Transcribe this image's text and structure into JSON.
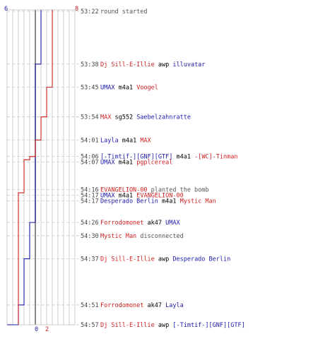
{
  "colors": {
    "t_blue": "#1a1aa8",
    "t_red": "#cc1f1f",
    "text": "#000000",
    "info": "#555555",
    "grid": "#bdbdbd",
    "dashed": "#c8c8c8",
    "center_axis": "#6a6a6a"
  },
  "counters": {
    "top_left": "6",
    "top_right": "8",
    "bottom_left": "0",
    "bottom_right": "2"
  },
  "chart_data": {
    "type": "line",
    "x_label": "",
    "series": [
      {
        "name": "blue-team",
        "color": "#1a1aa8",
        "points": [
          {
            "t": "53:22",
            "v": 6
          },
          {
            "t": "53:38",
            "v": 5
          },
          {
            "t": "54:26",
            "v": 4
          },
          {
            "t": "54:37",
            "v": 3
          },
          {
            "t": "54:51",
            "v": 2
          },
          {
            "t": "54:57",
            "v": 1
          },
          {
            "t": "end",
            "v": 0
          }
        ]
      },
      {
        "name": "red-team",
        "color": "#cc1f1f",
        "points": [
          {
            "t": "53:22",
            "v": 8
          },
          {
            "t": "53:45",
            "v": 7
          },
          {
            "t": "53:54",
            "v": 6
          },
          {
            "t": "54:01",
            "v": 5
          },
          {
            "t": "54:06",
            "v": 4
          },
          {
            "t": "54:07",
            "v": 3
          },
          {
            "t": "54:17",
            "v": 2
          },
          {
            "t": "end",
            "v": 2
          }
        ]
      }
    ]
  },
  "events": [
    {
      "time": "53:22",
      "parts": [
        {
          "text": "round started",
          "c": "info"
        }
      ]
    },
    {
      "time": "53:38",
      "parts": [
        {
          "text": "Dj Sill-E-Illie",
          "c": "red"
        },
        {
          "text": " awp ",
          "c": "text"
        },
        {
          "text": "illuvatar",
          "c": "blue"
        }
      ]
    },
    {
      "time": "53:45",
      "parts": [
        {
          "text": "UMAX",
          "c": "blue"
        },
        {
          "text": " m4a1 ",
          "c": "text"
        },
        {
          "text": "Voogel",
          "c": "red"
        }
      ]
    },
    {
      "time": "53:54",
      "parts": [
        {
          "text": "MAX",
          "c": "red"
        },
        {
          "text": " sg552 ",
          "c": "text"
        },
        {
          "text": "Saebelzahnratte",
          "c": "blue"
        }
      ]
    },
    {
      "time": "54:01",
      "parts": [
        {
          "text": "Layla",
          "c": "blue"
        },
        {
          "text": " m4a1 ",
          "c": "text"
        },
        {
          "text": "MAX",
          "c": "red"
        }
      ]
    },
    {
      "time": "54:06",
      "parts": [
        {
          "text": "[-Timtif-][GNF][GTF]",
          "c": "blue"
        },
        {
          "text": " m4a1 ",
          "c": "text"
        },
        {
          "text": "-[WC]-Tinman",
          "c": "red"
        }
      ]
    },
    {
      "time": "54:07",
      "parts": [
        {
          "text": "UMAX",
          "c": "blue"
        },
        {
          "text": " m4a1 ",
          "c": "text"
        },
        {
          "text": "pgplcereal",
          "c": "red"
        }
      ]
    },
    {
      "time": "54:16",
      "parts": [
        {
          "text": "EVANGELION-00",
          "c": "red"
        },
        {
          "text": " planted the bomb",
          "c": "info"
        }
      ]
    },
    {
      "time": "54:17",
      "parts": [
        {
          "text": "UMAX",
          "c": "blue"
        },
        {
          "text": " m4a1 ",
          "c": "text"
        },
        {
          "text": "EVANGELION-00",
          "c": "red"
        }
      ]
    },
    {
      "time": "54:17",
      "parts": [
        {
          "text": "Desperado Berlin",
          "c": "blue"
        },
        {
          "text": " m4a1 ",
          "c": "text"
        },
        {
          "text": "Mystic Man",
          "c": "red"
        }
      ]
    },
    {
      "time": "54:26",
      "parts": [
        {
          "text": "Forrodomonet",
          "c": "red"
        },
        {
          "text": " ak47 ",
          "c": "text"
        },
        {
          "text": "UMAX",
          "c": "blue"
        }
      ]
    },
    {
      "time": "54:30",
      "parts": [
        {
          "text": "Mystic Man",
          "c": "red"
        },
        {
          "text": " disconnected",
          "c": "info"
        }
      ]
    },
    {
      "time": "54:37",
      "parts": [
        {
          "text": "Dj Sill-E-Illie",
          "c": "red"
        },
        {
          "text": " awp ",
          "c": "text"
        },
        {
          "text": "Desperado Berlin",
          "c": "blue"
        }
      ]
    },
    {
      "time": "54:51",
      "parts": [
        {
          "text": "Forrodomonet",
          "c": "red"
        },
        {
          "text": " ak47 ",
          "c": "text"
        },
        {
          "text": "Layla",
          "c": "blue"
        }
      ]
    },
    {
      "time": "54:57",
      "parts": [
        {
          "text": "Dj Sill-E-Illie",
          "c": "red"
        },
        {
          "text": " awp ",
          "c": "text"
        },
        {
          "text": "[-Timtif-][GNF][GTF]",
          "c": "blue"
        }
      ]
    }
  ]
}
